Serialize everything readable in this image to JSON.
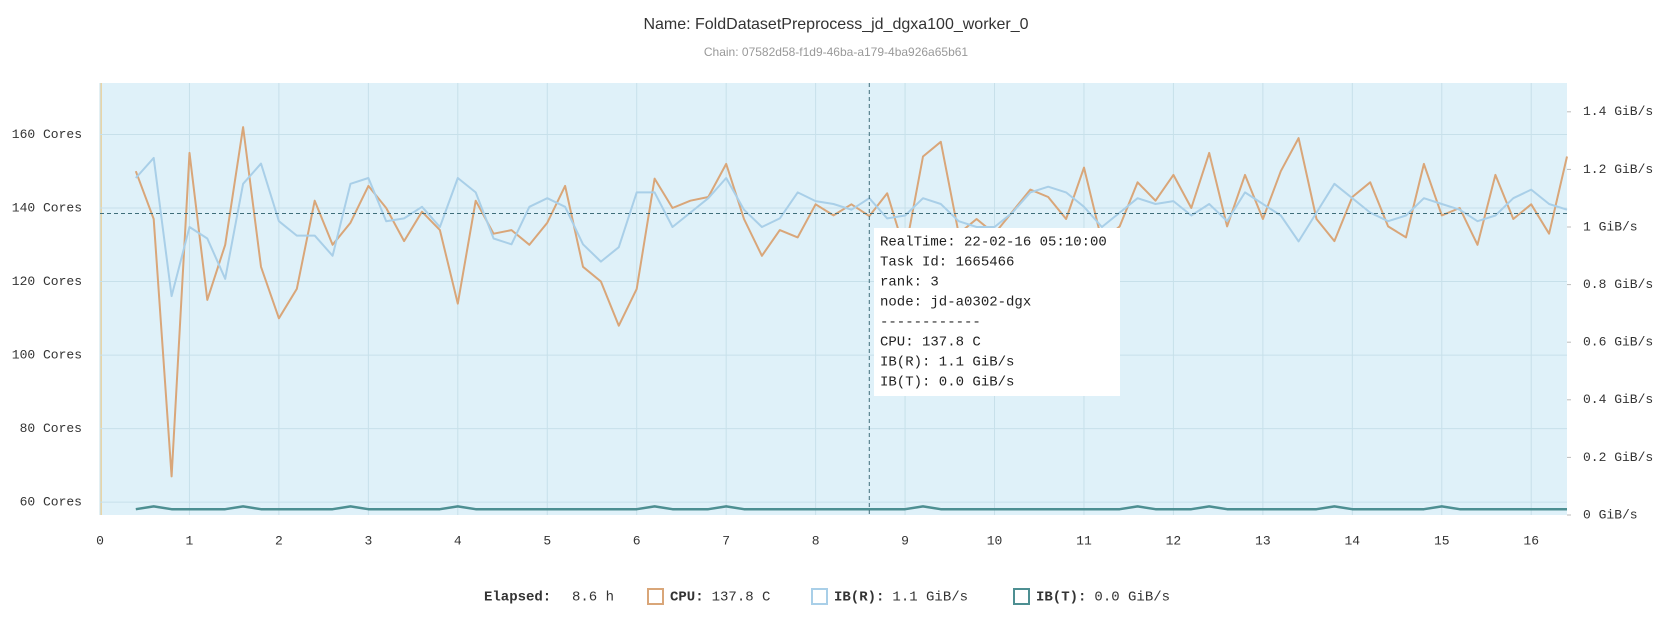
{
  "chart_data": {
    "type": "line",
    "title": "Name: FoldDatasetPreprocess_jd_dgxa100_worker_0",
    "subtitle": "Chain: 07582d58-f1d9-46ba-a179-4ba926a65b61",
    "x": [
      0.4,
      0.6,
      0.8,
      1.0,
      1.2,
      1.4,
      1.6,
      1.8,
      2.0,
      2.2,
      2.4,
      2.6,
      2.8,
      3.0,
      3.2,
      3.4,
      3.6,
      3.8,
      4.0,
      4.2,
      4.4,
      4.6,
      4.8,
      5.0,
      5.2,
      5.4,
      5.6,
      5.8,
      6.0,
      6.2,
      6.4,
      6.6,
      6.8,
      7.0,
      7.2,
      7.4,
      7.6,
      7.8,
      8.0,
      8.2,
      8.4,
      8.6,
      8.8,
      9.0,
      9.2,
      9.4,
      9.6,
      9.8,
      10.0,
      10.2,
      10.4,
      10.6,
      10.8,
      11.0,
      11.2,
      11.4,
      11.6,
      11.8,
      12.0,
      12.2,
      12.4,
      12.6,
      12.8,
      13.0,
      13.2,
      13.4,
      13.6,
      13.8,
      14.0,
      14.2,
      14.4,
      14.6,
      14.8,
      15.0,
      15.2,
      15.4,
      15.6,
      15.8,
      16.0,
      16.2,
      16.4
    ],
    "series": [
      {
        "name": "CPU:",
        "current": "137.8 C",
        "color": "#d9a679",
        "axis": "y",
        "values": [
          150,
          137,
          67,
          155,
          115,
          130,
          162,
          124,
          110,
          118,
          142,
          130,
          136,
          146,
          140,
          131,
          139,
          134,
          114,
          142,
          133,
          134,
          130,
          136,
          146,
          124,
          120,
          108,
          118,
          148,
          140,
          142,
          143,
          152,
          137,
          127,
          134,
          132,
          141,
          138,
          141,
          137.8,
          144,
          128,
          154,
          158,
          133,
          137,
          133,
          139,
          145,
          143,
          137,
          151,
          131,
          135,
          147,
          142,
          149,
          140,
          155,
          135,
          149,
          137,
          150,
          159,
          137,
          131,
          143,
          147,
          135,
          132,
          152,
          138,
          140,
          130,
          149,
          137,
          141,
          133,
          154
        ]
      },
      {
        "name": "IB(R):",
        "current": "1.1 GiB/s",
        "color": "#a9cfe8",
        "axis": "y2",
        "values": [
          1.17,
          1.24,
          0.76,
          1.0,
          0.96,
          0.82,
          1.15,
          1.22,
          1.02,
          0.97,
          0.97,
          0.9,
          1.15,
          1.17,
          1.02,
          1.03,
          1.07,
          1.0,
          1.17,
          1.12,
          0.96,
          0.94,
          1.07,
          1.1,
          1.07,
          0.94,
          0.88,
          0.93,
          1.12,
          1.12,
          1.0,
          1.05,
          1.1,
          1.17,
          1.06,
          1.0,
          1.03,
          1.12,
          1.09,
          1.08,
          1.06,
          1.1,
          1.03,
          1.04,
          1.1,
          1.08,
          1.02,
          1.0,
          1.0,
          1.05,
          1.12,
          1.14,
          1.12,
          1.07,
          1.0,
          1.05,
          1.1,
          1.08,
          1.09,
          1.04,
          1.08,
          1.02,
          1.12,
          1.08,
          1.04,
          0.95,
          1.05,
          1.15,
          1.1,
          1.05,
          1.02,
          1.04,
          1.1,
          1.08,
          1.06,
          1.02,
          1.04,
          1.1,
          1.13,
          1.08,
          1.06
        ]
      },
      {
        "name": "IB(T):",
        "current": "0.0 GiB/s",
        "color": "#4d8f92",
        "axis": "y2",
        "values": [
          0.02,
          0.03,
          0.02,
          0.02,
          0.02,
          0.02,
          0.03,
          0.02,
          0.02,
          0.02,
          0.02,
          0.02,
          0.03,
          0.02,
          0.02,
          0.02,
          0.02,
          0.02,
          0.03,
          0.02,
          0.02,
          0.02,
          0.02,
          0.02,
          0.02,
          0.02,
          0.02,
          0.02,
          0.02,
          0.03,
          0.02,
          0.02,
          0.02,
          0.03,
          0.02,
          0.02,
          0.02,
          0.02,
          0.02,
          0.02,
          0.02,
          0.02,
          0.02,
          0.02,
          0.03,
          0.02,
          0.02,
          0.02,
          0.02,
          0.02,
          0.02,
          0.02,
          0.02,
          0.02,
          0.02,
          0.02,
          0.03,
          0.02,
          0.02,
          0.02,
          0.03,
          0.02,
          0.02,
          0.02,
          0.02,
          0.02,
          0.02,
          0.03,
          0.02,
          0.02,
          0.02,
          0.02,
          0.02,
          0.03,
          0.02,
          0.02,
          0.02,
          0.02,
          0.02,
          0.02,
          0.02
        ]
      }
    ],
    "xlim": [
      0,
      16.4
    ],
    "xticks": [
      0,
      1,
      2,
      3,
      4,
      5,
      6,
      7,
      8,
      9,
      10,
      11,
      12,
      13,
      14,
      15,
      16
    ],
    "ylim": [
      56.5,
      174
    ],
    "yticks": [
      {
        "value": 60,
        "label": "60 Cores"
      },
      {
        "value": 80,
        "label": "80 Cores"
      },
      {
        "value": 100,
        "label": "100 Cores"
      },
      {
        "value": 120,
        "label": "120 Cores"
      },
      {
        "value": 140,
        "label": "140 Cores"
      },
      {
        "value": 160,
        "label": "160 Cores"
      }
    ],
    "y2lim": [
      0,
      1.5
    ],
    "y2ticks": [
      {
        "value": 0,
        "label": "0 GiB/s"
      },
      {
        "value": 0.2,
        "label": "0.2 GiB/s"
      },
      {
        "value": 0.4,
        "label": "0.4 GiB/s"
      },
      {
        "value": 0.6,
        "label": "0.6 GiB/s"
      },
      {
        "value": 0.8,
        "label": "0.8 GiB/s"
      },
      {
        "value": 1.0,
        "label": "1 GiB/s"
      },
      {
        "value": 1.2,
        "label": "1.2 GiB/s"
      },
      {
        "value": 1.4,
        "label": "1.4 GiB/s"
      }
    ],
    "grid": true,
    "crosshair": {
      "x": 8.6,
      "y": 138.5
    },
    "tooltip": [
      "RealTime: 22-02-16 05:10:00",
      "Task Id: 1665466",
      "rank: 3",
      "node: jd-a0302-dgx",
      "------------",
      "CPU: 137.8 C",
      "IB(R): 1.1 GiB/s",
      "IB(T): 0.0 GiB/s"
    ],
    "elapsed": {
      "label": "Elapsed:",
      "value": "8.6 h"
    }
  }
}
